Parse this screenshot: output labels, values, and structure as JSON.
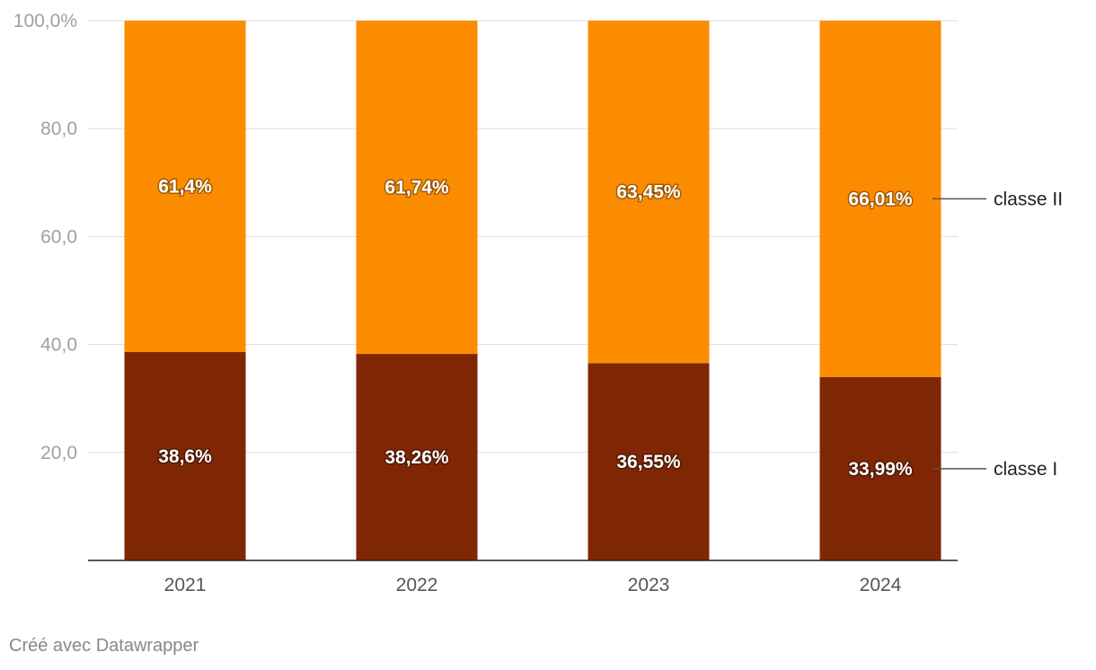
{
  "chart_data": {
    "type": "bar",
    "stacked": true,
    "categories": [
      "2021",
      "2022",
      "2023",
      "2024"
    ],
    "series": [
      {
        "name": "classe I",
        "values": [
          38.6,
          38.26,
          36.55,
          33.99
        ],
        "labels": [
          "38,6%",
          "38,26%",
          "36,55%",
          "33,99%"
        ],
        "color": "#7f2704"
      },
      {
        "name": "classe II",
        "values": [
          61.4,
          61.74,
          63.45,
          66.01
        ],
        "labels": [
          "61,4%",
          "61,74%",
          "63,45%",
          "66,01%"
        ],
        "color": "#fb8c00"
      }
    ],
    "ylim": [
      0,
      100
    ],
    "yticks": [
      {
        "value": 20,
        "label": "20,0"
      },
      {
        "value": 40,
        "label": "40,0"
      },
      {
        "value": 60,
        "label": "60,0"
      },
      {
        "value": 80,
        "label": "80,0"
      },
      {
        "value": 100,
        "label": "100,0%"
      }
    ],
    "grid": true,
    "legend": "right, inline labels"
  },
  "footer": {
    "credit": "Créé avec Datawrapper"
  }
}
